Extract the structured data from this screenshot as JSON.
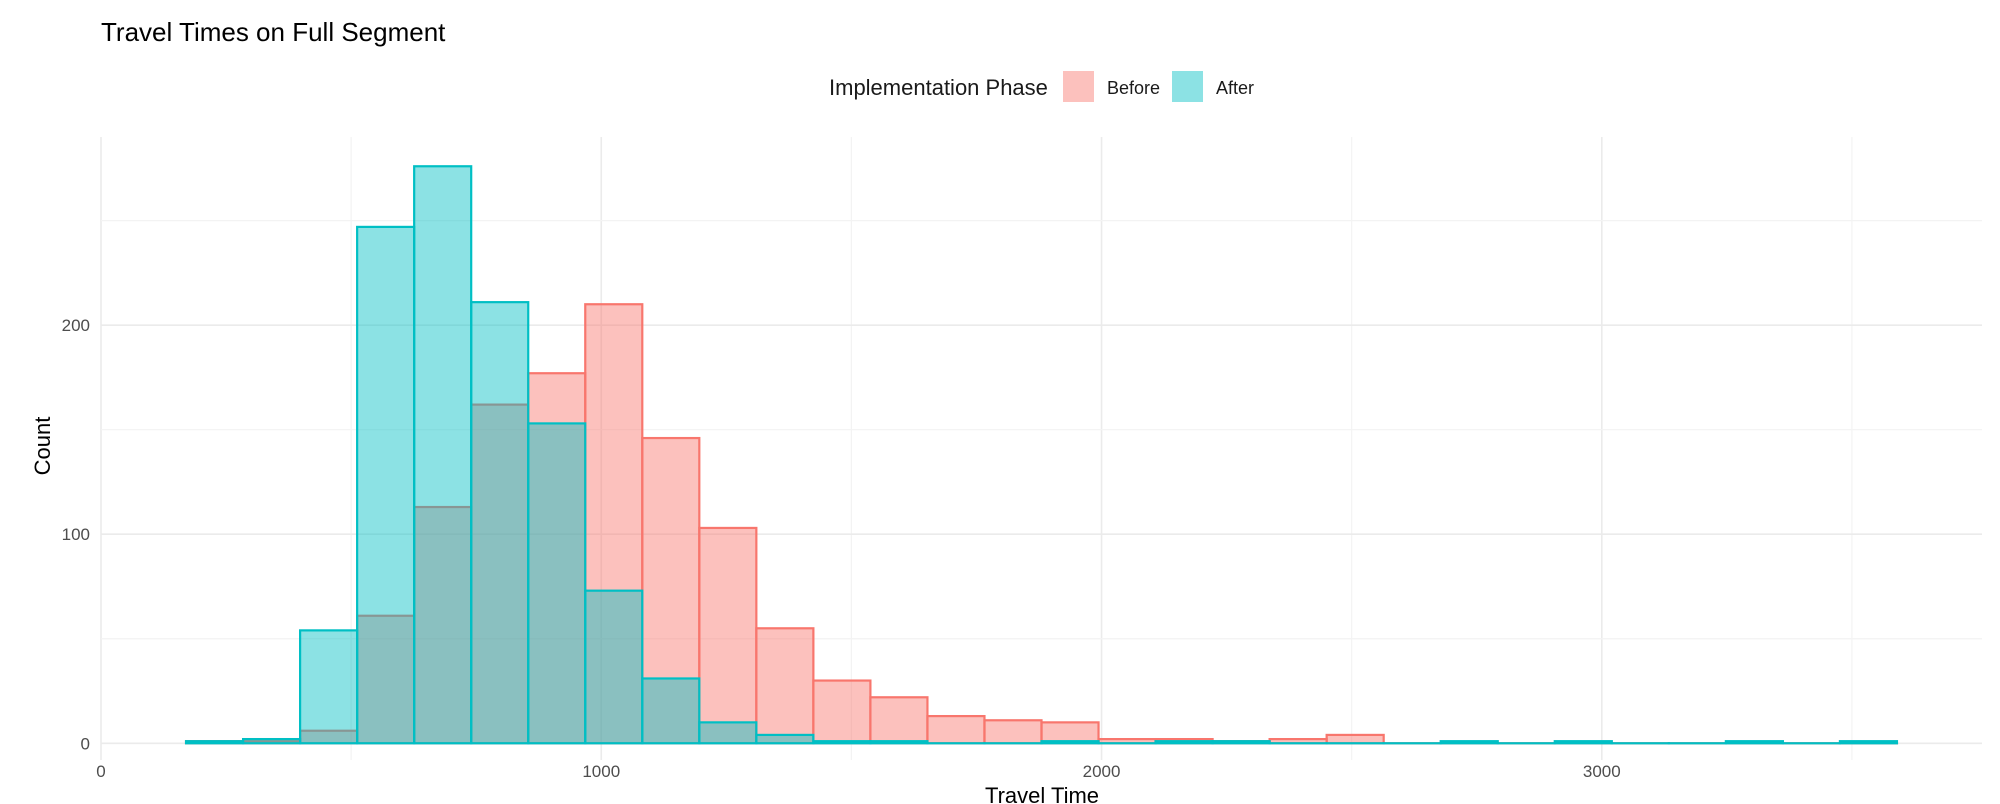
{
  "chart_data": {
    "type": "bar",
    "subtype": "overlapping-histogram",
    "title": "Travel Times on Full Segment",
    "xlabel": "Travel Time",
    "ylabel": "Count",
    "xlim": [
      0,
      3760
    ],
    "ylim": [
      -8,
      290
    ],
    "x_ticks": [
      0,
      1000,
      2000,
      3000
    ],
    "y_ticks": [
      0,
      100,
      200
    ],
    "grid": true,
    "legend": {
      "title": "Implementation Phase",
      "placement": "top-center"
    },
    "bin_width": 114,
    "bin_starts": [
      170,
      284,
      398,
      512,
      626,
      740,
      854,
      968,
      1082,
      1196,
      1310,
      1424,
      1538,
      1652,
      1766,
      1880,
      1994,
      2108,
      2222,
      2336,
      2450,
      2564,
      2678,
      2792,
      2906,
      3020,
      3134,
      3248,
      3362,
      3476
    ],
    "series": [
      {
        "name": "Before",
        "fill": "#F8766D",
        "stroke": "#F8766D",
        "values": [
          1,
          1,
          6,
          61,
          113,
          162,
          177,
          210,
          146,
          103,
          55,
          30,
          22,
          13,
          11,
          10,
          2,
          2,
          1,
          2,
          4,
          0,
          0,
          0,
          0,
          0,
          0,
          0,
          0,
          0
        ]
      },
      {
        "name": "After",
        "fill": "#00BFC4",
        "stroke": "#00BFC4",
        "values": [
          1,
          2,
          54,
          247,
          276,
          211,
          153,
          73,
          31,
          10,
          4,
          1,
          1,
          0,
          0,
          1,
          0,
          1,
          1,
          0,
          0,
          0,
          1,
          0,
          1,
          0,
          0,
          1,
          0,
          1
        ]
      }
    ]
  }
}
